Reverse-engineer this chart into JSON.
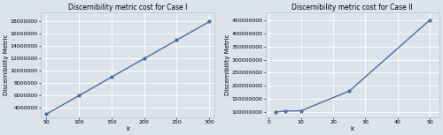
{
  "case1": {
    "title": "Discernibility metric cost for Case I",
    "xlabel": "k",
    "ylabel": "Discernibility Metric",
    "x": [
      50,
      100,
      150,
      200,
      250,
      300
    ],
    "y": [
      3000000,
      6000000,
      9000000,
      12000000,
      15000000,
      18000000
    ],
    "xlim": [
      42,
      308
    ],
    "ylim": [
      2500000,
      19500000
    ],
    "yticks": [
      4000000,
      6000000,
      8000000,
      10000000,
      12000000,
      14000000,
      16000000,
      18000000
    ],
    "xticks": [
      50,
      100,
      150,
      200,
      250,
      300
    ],
    "line_color": "#4c6ea0",
    "marker": "o",
    "markersize": 2.5,
    "linewidth": 1.0
  },
  "case2": {
    "title": "Discernibility metric cost for Case II",
    "xlabel": "k",
    "ylabel": "Discernibility Metric",
    "x": [
      2,
      5,
      10,
      25,
      50
    ],
    "y": [
      100000000,
      104000000,
      105000000,
      180000000,
      450000000
    ],
    "xlim": [
      -1,
      53
    ],
    "ylim": [
      80000000,
      480000000
    ],
    "yticks": [
      100000000,
      150000000,
      200000000,
      250000000,
      300000000,
      350000000,
      400000000,
      450000000
    ],
    "xticks": [
      0,
      10,
      20,
      30,
      40,
      50
    ],
    "line_color": "#4c6ea0",
    "marker": "o",
    "markersize": 2.5,
    "linewidth": 1.0
  },
  "fig_background": "#dde3ea",
  "ax_background": "#dde3ea",
  "grid_color": "#ffffff",
  "title_fontsize": 5.5,
  "label_fontsize": 5.0,
  "tick_fontsize": 4.5
}
